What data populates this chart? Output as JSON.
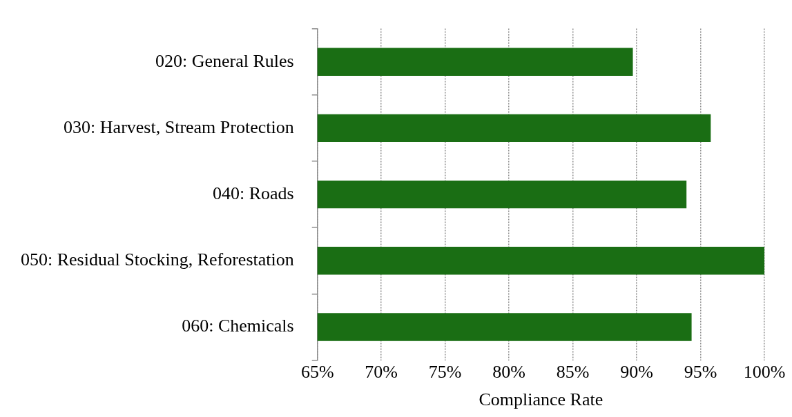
{
  "chart_data": {
    "type": "bar",
    "orientation": "horizontal",
    "xlabel": "Compliance Rate",
    "categories": [
      "020: General Rules",
      "030: Harvest, Stream Protection",
      "040: Roads",
      "050: Residual Stocking, Reforestation",
      "060: Chemicals"
    ],
    "values": [
      89.7,
      95.8,
      93.9,
      100,
      94.3
    ],
    "color": "#1a6e14",
    "xlim": [
      65,
      100
    ],
    "xticks": [
      {
        "value": 65,
        "label": "65%"
      },
      {
        "value": 70,
        "label": "70%"
      },
      {
        "value": 75,
        "label": "75%"
      },
      {
        "value": 80,
        "label": "80%"
      },
      {
        "value": 85,
        "label": "85%"
      },
      {
        "value": 90,
        "label": "90%"
      },
      {
        "value": 95,
        "label": "95%"
      },
      {
        "value": 100,
        "label": "100%"
      }
    ],
    "grid": "x",
    "legend": false
  }
}
